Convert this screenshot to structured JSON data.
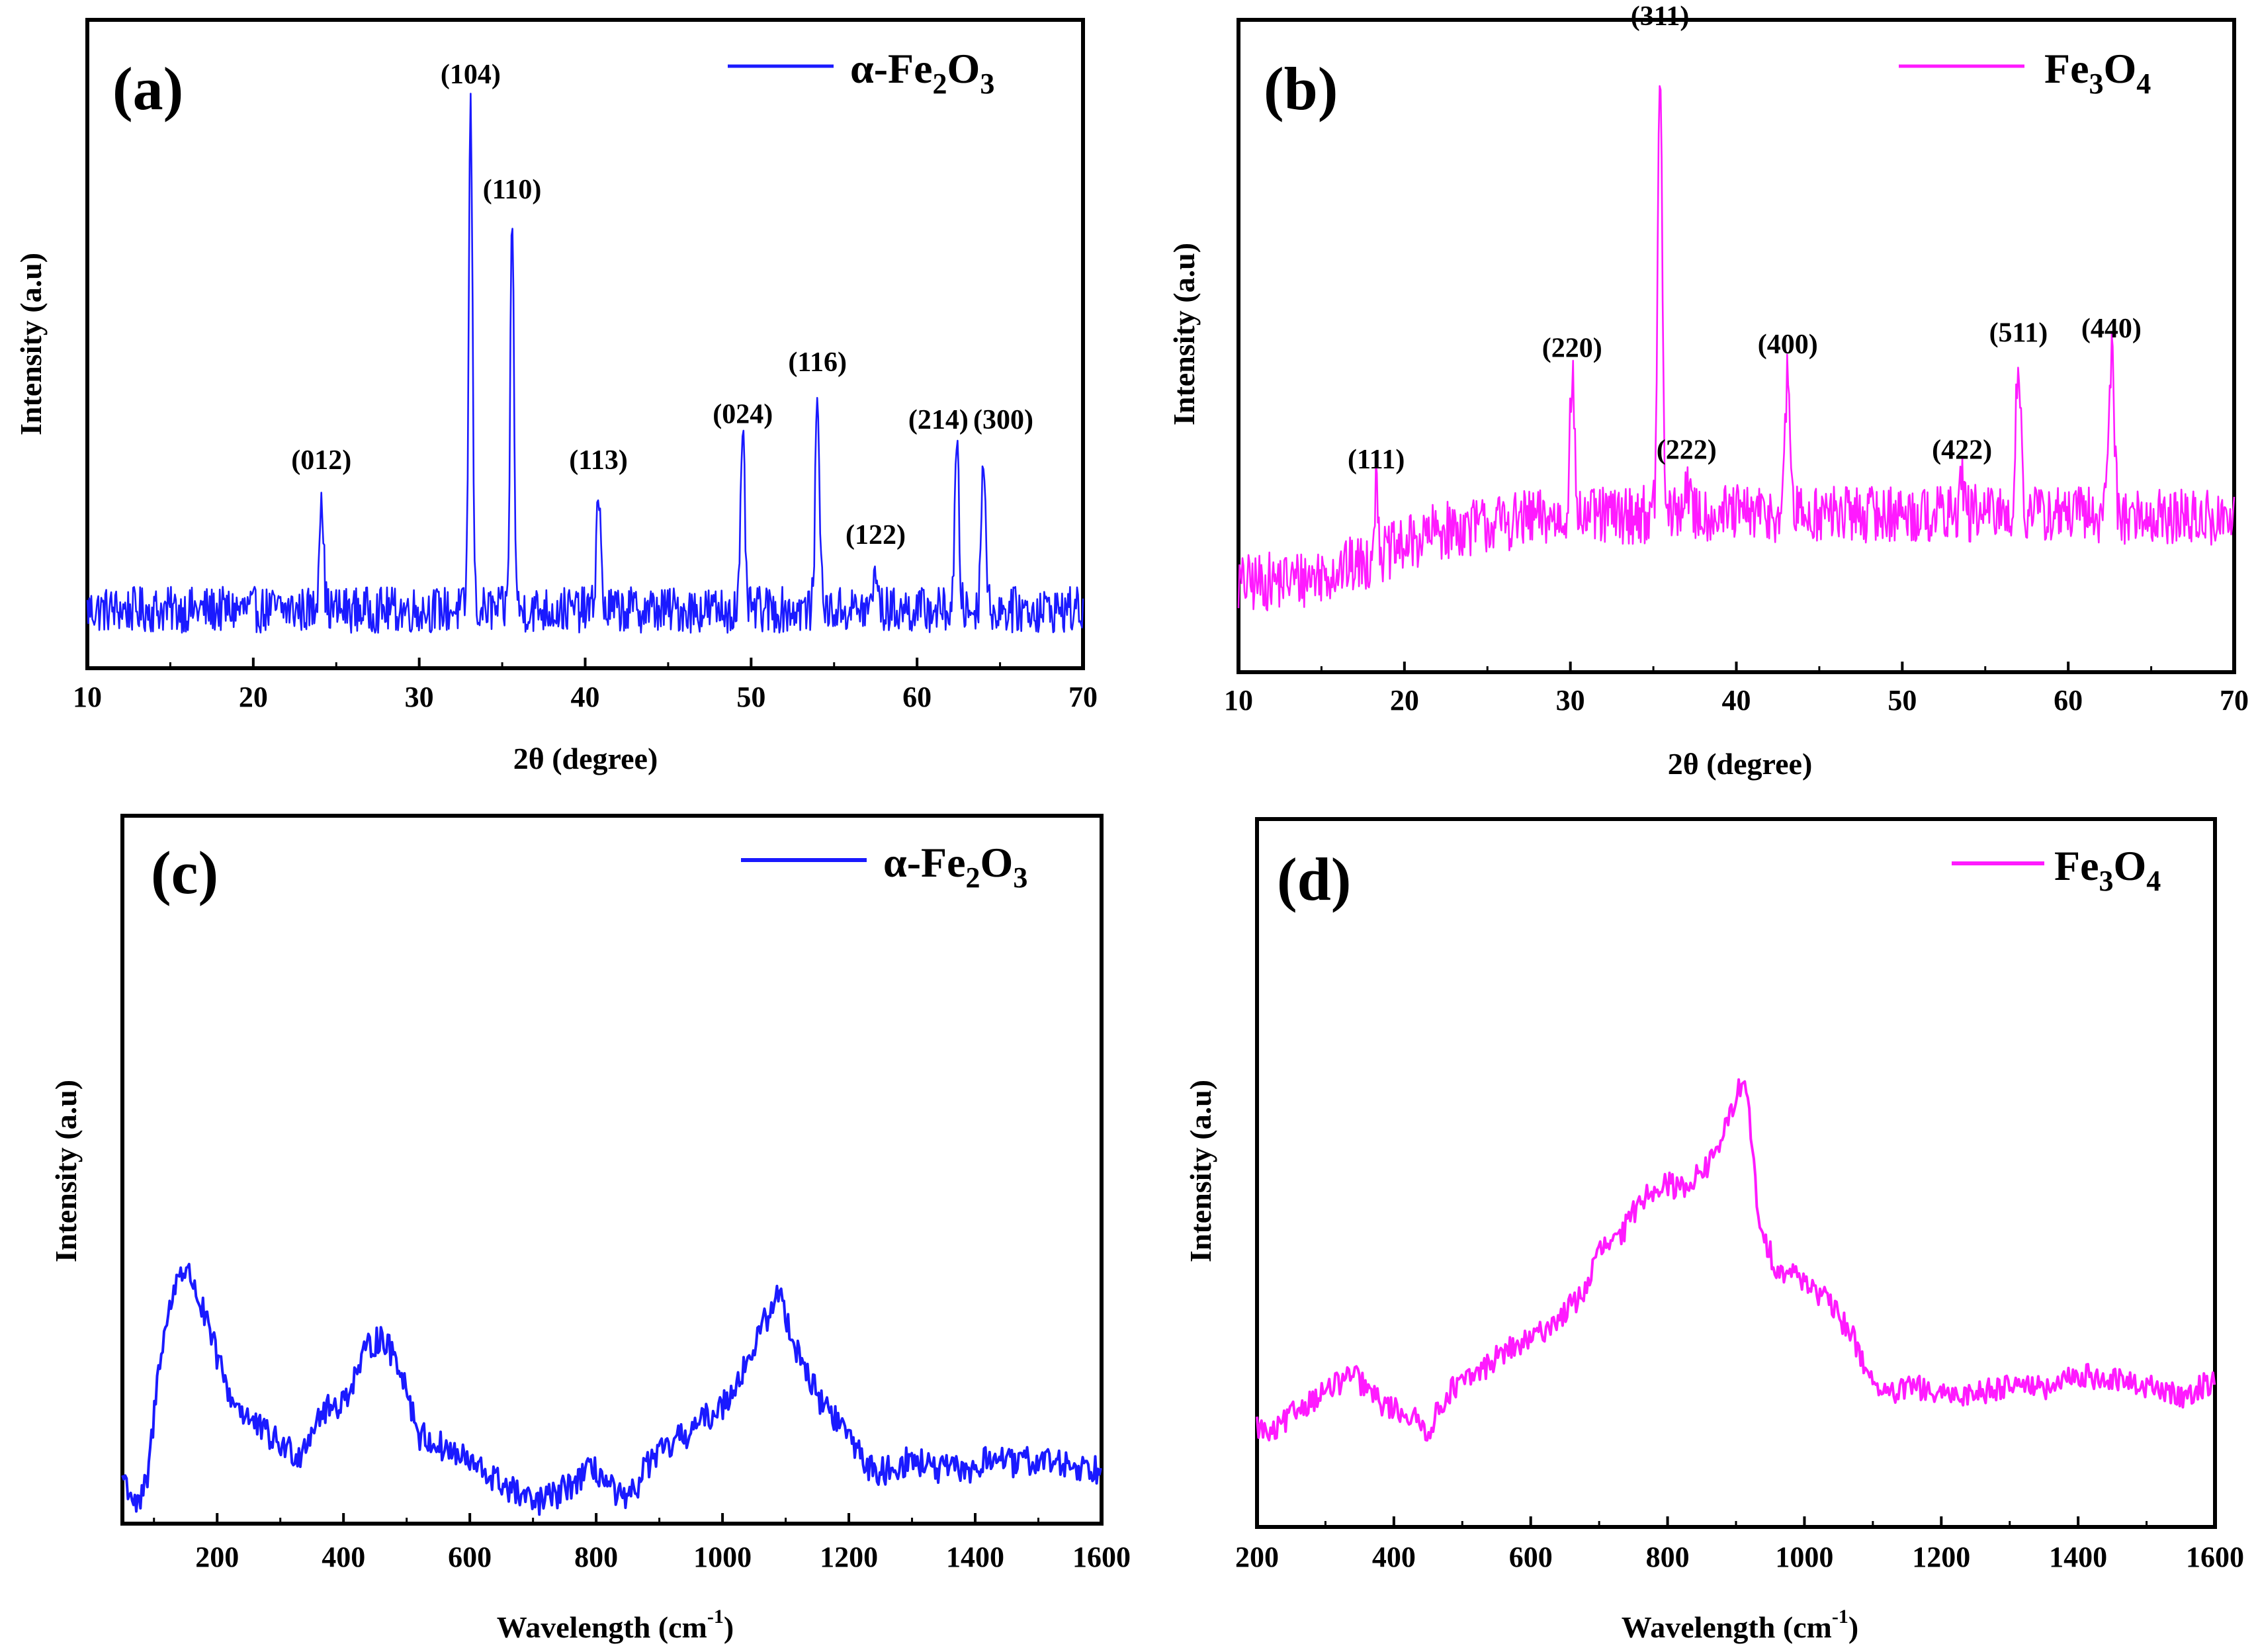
{
  "colors": {
    "blue": "#1a1aff",
    "magenta": "#ff1aff",
    "axis": "#000000"
  },
  "chart_data": [
    {
      "id": "a",
      "type": "line",
      "panel_label": "(a)",
      "legend": {
        "prefix": "α-Fe",
        "sub1": "2",
        "mid": "O",
        "sub2": "3"
      },
      "color": "blue",
      "xlabel": "2θ (degree)",
      "ylabel": "Intensity (a.u)",
      "xlim": [
        10,
        70
      ],
      "ylim": [
        0,
        100
      ],
      "xticks": [
        10,
        20,
        30,
        40,
        50,
        60,
        70
      ],
      "baseline": 9,
      "noise": 4,
      "noise_step": 0.06,
      "trend": [],
      "peaks": [
        {
          "x": 24.1,
          "height": 21,
          "width": 0.18,
          "label": "(012)"
        },
        {
          "x": 33.1,
          "height": 88,
          "width": 0.16,
          "label": "(104)"
        },
        {
          "x": 35.6,
          "height": 68,
          "width": 0.16,
          "label": "(110)"
        },
        {
          "x": 40.8,
          "height": 21,
          "width": 0.18,
          "label": "(113)"
        },
        {
          "x": 49.5,
          "height": 29,
          "width": 0.18,
          "label": "(024)"
        },
        {
          "x": 54.0,
          "height": 38,
          "width": 0.18,
          "label": "(116)"
        },
        {
          "x": 57.5,
          "height": 8,
          "width": 0.16,
          "label": "(122)"
        },
        {
          "x": 62.4,
          "height": 28,
          "width": 0.18,
          "label": "(214)"
        },
        {
          "x": 64.0,
          "height": 28,
          "width": 0.18,
          "label": "(300)"
        }
      ]
    },
    {
      "id": "b",
      "type": "line",
      "panel_label": "(b)",
      "legend": {
        "prefix": "Fe",
        "sub1": "3",
        "mid": "O",
        "sub2": "4"
      },
      "color": "magenta",
      "xlabel": "2θ (degree)",
      "ylabel": "Intensity (a.u)",
      "xlim": [
        10,
        70
      ],
      "ylim": [
        0,
        100
      ],
      "xticks": [
        10,
        20,
        30,
        40,
        50,
        60,
        70
      ],
      "baseline": 14,
      "noise": 5,
      "noise_step": 0.06,
      "trend": [
        [
          10,
          1
        ],
        [
          14,
          2
        ],
        [
          18,
          5
        ],
        [
          22,
          10
        ],
        [
          27,
          12
        ],
        [
          35,
          13
        ],
        [
          50,
          13
        ],
        [
          60,
          13
        ],
        [
          70,
          12
        ]
      ],
      "peaks": [
        {
          "x": 18.3,
          "height": 12,
          "width": 0.2,
          "label": "(111)"
        },
        {
          "x": 30.1,
          "height": 24,
          "width": 0.2,
          "label": "(220)"
        },
        {
          "x": 35.4,
          "height": 80,
          "width": 0.18,
          "label": "(311)"
        },
        {
          "x": 37.0,
          "height": 6,
          "width": 0.2,
          "label": "(222)"
        },
        {
          "x": 43.1,
          "height": 24,
          "width": 0.2,
          "label": "(400)"
        },
        {
          "x": 53.6,
          "height": 6,
          "width": 0.2,
          "label": "(422)"
        },
        {
          "x": 57.0,
          "height": 26,
          "width": 0.22,
          "label": "(511)"
        },
        {
          "x": 62.6,
          "height": 27,
          "width": 0.25,
          "label": "(440)"
        }
      ]
    },
    {
      "id": "c",
      "type": "line",
      "panel_label": "(c)",
      "legend": {
        "prefix": "α-Fe",
        "sub1": "2",
        "mid": "O",
        "sub2": "3"
      },
      "color": "blue",
      "xlabel": "Wavelength (cm",
      "xlabel_sup": "-1",
      "xlabel_end": ")",
      "ylabel": "Intensity (a.u)",
      "xlim": [
        50,
        1600
      ],
      "ylim": [
        0,
        100
      ],
      "xticks": [
        200,
        400,
        600,
        800,
        1000,
        1200,
        1400,
        1600
      ],
      "baseline": 0,
      "noise": 3,
      "noise_step": 2.2,
      "trend": [
        [
          50,
          10
        ],
        [
          75,
          3
        ],
        [
          90,
          9
        ],
        [
          110,
          35
        ],
        [
          140,
          52
        ],
        [
          160,
          50
        ],
        [
          190,
          38
        ],
        [
          220,
          26
        ],
        [
          260,
          20
        ],
        [
          300,
          16
        ],
        [
          330,
          14
        ],
        [
          360,
          22
        ],
        [
          400,
          25
        ],
        [
          440,
          36
        ],
        [
          460,
          38
        ],
        [
          490,
          32
        ],
        [
          520,
          18
        ],
        [
          580,
          14
        ],
        [
          640,
          9
        ],
        [
          700,
          4
        ],
        [
          740,
          6
        ],
        [
          780,
          10
        ],
        [
          800,
          11
        ],
        [
          830,
          6
        ],
        [
          850,
          4
        ],
        [
          880,
          12
        ],
        [
          920,
          16
        ],
        [
          960,
          20
        ],
        [
          1000,
          24
        ],
        [
          1040,
          33
        ],
        [
          1070,
          42
        ],
        [
          1090,
          47
        ],
        [
          1110,
          38
        ],
        [
          1150,
          26
        ],
        [
          1200,
          18
        ],
        [
          1240,
          10
        ],
        [
          1300,
          13
        ],
        [
          1340,
          11
        ],
        [
          1400,
          11
        ],
        [
          1430,
          14
        ],
        [
          1460,
          12
        ],
        [
          1500,
          13
        ],
        [
          1550,
          12
        ],
        [
          1600,
          11
        ]
      ],
      "peaks": []
    },
    {
      "id": "d",
      "type": "line",
      "panel_label": "(d)",
      "legend": {
        "prefix": "Fe",
        "sub1": "3",
        "mid": "O",
        "sub2": "4"
      },
      "color": "magenta",
      "xlabel": "Wavelength (cm",
      "xlabel_sup": "-1",
      "xlabel_end": ")",
      "ylabel": "Intensity (a.u)",
      "xlim": [
        200,
        1600
      ],
      "ylim": [
        0,
        100
      ],
      "xticks": [
        200,
        400,
        600,
        800,
        1000,
        1200,
        1400,
        1600
      ],
      "baseline": 0,
      "noise": 2.2,
      "noise_step": 2.2,
      "trend": [
        [
          200,
          18
        ],
        [
          220,
          16
        ],
        [
          260,
          21
        ],
        [
          300,
          24
        ],
        [
          340,
          27
        ],
        [
          380,
          22
        ],
        [
          420,
          20
        ],
        [
          450,
          17
        ],
        [
          480,
          24
        ],
        [
          520,
          27
        ],
        [
          560,
          31
        ],
        [
          600,
          33
        ],
        [
          650,
          38
        ],
        [
          680,
          42
        ],
        [
          700,
          49
        ],
        [
          730,
          51
        ],
        [
          760,
          58
        ],
        [
          790,
          61
        ],
        [
          820,
          60
        ],
        [
          860,
          64
        ],
        [
          890,
          72
        ],
        [
          910,
          80
        ],
        [
          920,
          72
        ],
        [
          935,
          52
        ],
        [
          960,
          46
        ],
        [
          1000,
          44
        ],
        [
          1040,
          39
        ],
        [
          1070,
          34
        ],
        [
          1090,
          28
        ],
        [
          1120,
          23
        ],
        [
          1160,
          25
        ],
        [
          1200,
          23
        ],
        [
          1260,
          24
        ],
        [
          1320,
          26
        ],
        [
          1350,
          24
        ],
        [
          1400,
          27
        ],
        [
          1450,
          26
        ],
        [
          1500,
          25
        ],
        [
          1550,
          23
        ],
        [
          1600,
          26
        ]
      ],
      "peaks": []
    }
  ]
}
